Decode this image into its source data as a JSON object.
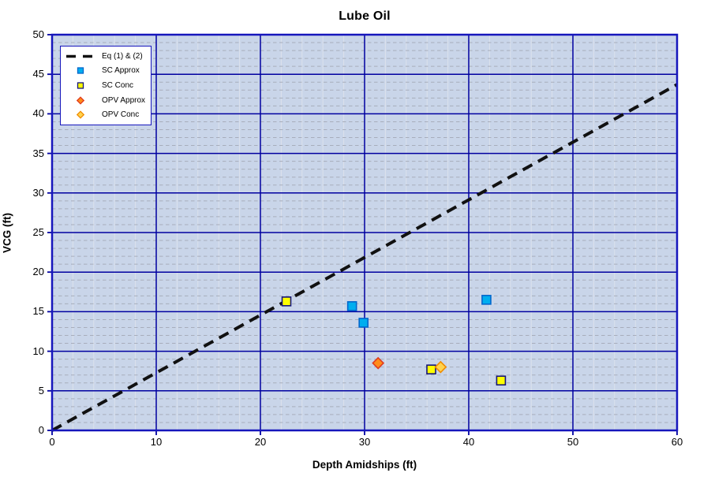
{
  "chart_data": {
    "type": "scatter",
    "title": "Lube Oil",
    "xlabel": "Depth Amidships  (ft)",
    "ylabel": "VCG  (ft)",
    "xlim": [
      0,
      60
    ],
    "ylim": [
      0,
      50
    ],
    "xticks": [
      0,
      10,
      20,
      30,
      40,
      50,
      60
    ],
    "yticks": [
      0,
      5,
      10,
      15,
      20,
      25,
      30,
      35,
      40,
      45,
      50
    ],
    "x_minor_step": 2,
    "y_minor_step": 1,
    "grid": "major and minor on",
    "legend_position": "top-left inside plot",
    "series": [
      {
        "name": "Eq (1) & (2)",
        "type": "line",
        "style": "dashed",
        "color": "#111111",
        "points": [
          [
            0,
            0
          ],
          [
            60,
            43.7
          ]
        ]
      },
      {
        "name": "SC Approx",
        "type": "scatter",
        "marker": "square",
        "fill": "#00aeef",
        "stroke": "#0066cc",
        "points": [
          [
            28.8,
            15.7
          ],
          [
            29.9,
            13.6
          ],
          [
            41.7,
            16.5
          ]
        ]
      },
      {
        "name": "SC Conc",
        "type": "scatter",
        "marker": "square",
        "fill": "#ffff00",
        "stroke": "#16167a",
        "points": [
          [
            22.5,
            16.3
          ],
          [
            36.4,
            7.7
          ],
          [
            43.1,
            6.3
          ]
        ]
      },
      {
        "name": "OPV Approx",
        "type": "scatter",
        "marker": "diamond",
        "fill": "#ff8c1a",
        "stroke": "#e03a1e",
        "points": [
          [
            31.3,
            8.5
          ]
        ]
      },
      {
        "name": "OPV Conc",
        "type": "scatter",
        "marker": "diamond",
        "fill": "#ffd34f",
        "stroke": "#f08c00",
        "points": [
          [
            37.3,
            8.0
          ]
        ]
      }
    ],
    "colors": {
      "plot_bg": "#c9d5e9",
      "major_grid": "#0000a0",
      "minor_grid_h": "#a7adbb",
      "minor_grid_v": "#dce1ec",
      "border": "#1616bc",
      "axis": "#0000a0",
      "title_color": "#000000"
    }
  }
}
